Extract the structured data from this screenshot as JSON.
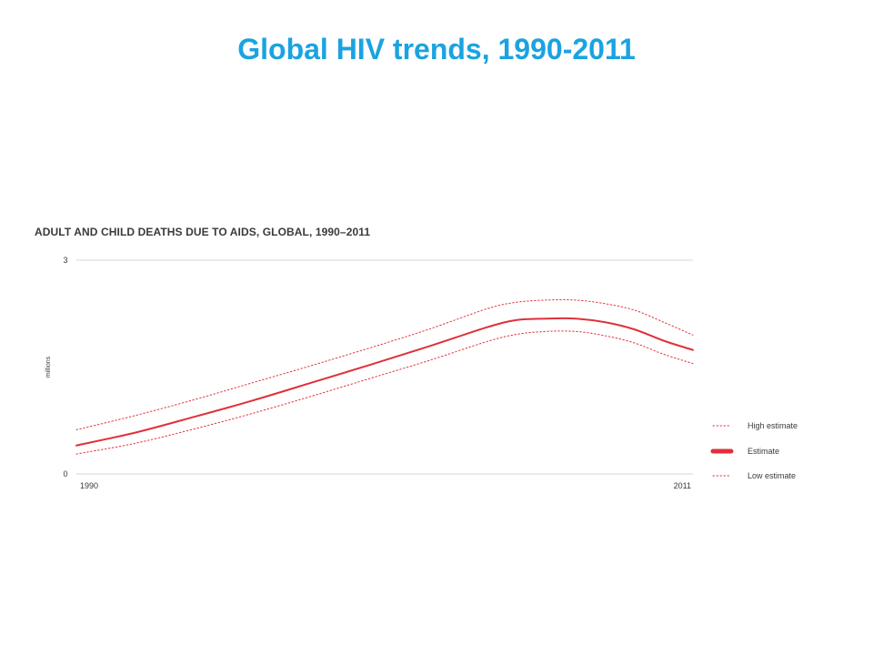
{
  "slide": {
    "title": "Global HIV trends, 1990-2011"
  },
  "chart_data": {
    "type": "line",
    "title": "ADULT AND CHILD DEATHS DUE TO AIDS, GLOBAL, 1990–2011",
    "ylabel": "millions",
    "xlabel": "",
    "xlim": [
      1990,
      2011
    ],
    "ylim": [
      0,
      3
    ],
    "x_tick_labels": [
      "1990",
      "2011"
    ],
    "y_tick_labels": [
      "0",
      "3"
    ],
    "y_ticks": [
      0,
      3
    ],
    "x_ticks": [
      1990,
      2011
    ],
    "grid": "horizontal",
    "legend_position": "right",
    "x": [
      1990,
      1992,
      1994,
      1996,
      1998,
      2000,
      2002,
      2004,
      2005,
      2006,
      2007,
      2008,
      2009,
      2010,
      2011
    ],
    "series": [
      {
        "name": "High estimate",
        "style": "dotted",
        "color": "#e0303a",
        "values": [
          0.62,
          0.82,
          1.04,
          1.28,
          1.52,
          1.77,
          2.03,
          2.32,
          2.41,
          2.44,
          2.44,
          2.39,
          2.3,
          2.13,
          1.95
        ]
      },
      {
        "name": "Estimate",
        "style": "solid",
        "color": "#e0303a",
        "values": [
          0.4,
          0.58,
          0.8,
          1.03,
          1.28,
          1.53,
          1.79,
          2.06,
          2.16,
          2.18,
          2.18,
          2.13,
          2.03,
          1.87,
          1.74
        ]
      },
      {
        "name": "Low estimate",
        "style": "dotted",
        "color": "#e0303a",
        "values": [
          0.28,
          0.43,
          0.63,
          0.85,
          1.09,
          1.34,
          1.59,
          1.86,
          1.96,
          2.0,
          2.0,
          1.94,
          1.84,
          1.68,
          1.55
        ]
      }
    ]
  }
}
